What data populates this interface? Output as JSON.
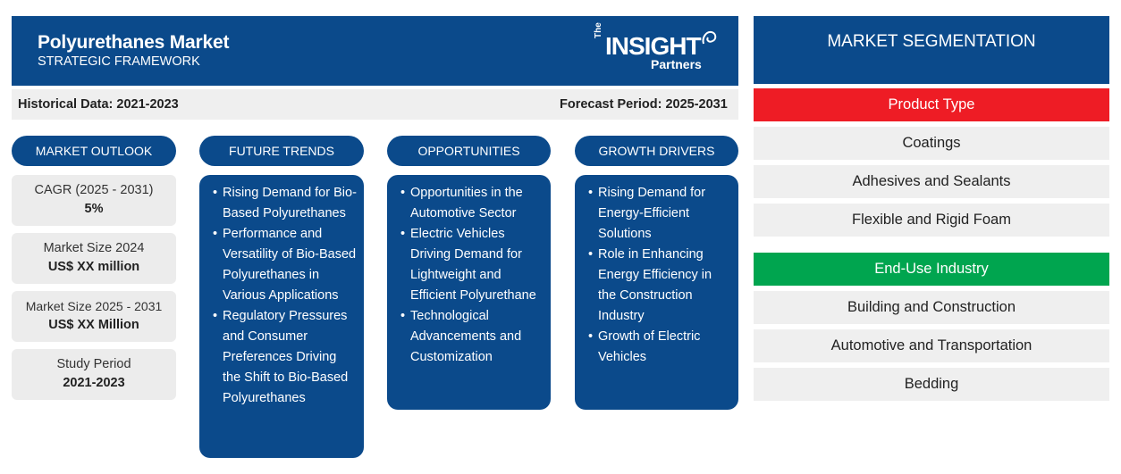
{
  "header": {
    "title": "Polyurethanes Market",
    "subtitle": "STRATEGIC FRAMEWORK",
    "logo": {
      "the": "The",
      "insight": "INSIGHT",
      "partners": "Partners"
    }
  },
  "info_bar": {
    "historical": "Historical Data: 2021-2023",
    "forecast": "Forecast Period: 2025-2031"
  },
  "columns": {
    "market_outlook": {
      "header": "MARKET OUTLOOK",
      "stats": [
        {
          "label": "CAGR (2025 - 2031)",
          "value": "5%"
        },
        {
          "label": "Market Size 2024",
          "value": "US$ XX million"
        },
        {
          "label": "Market Size 2025 - 2031",
          "value": "US$ XX Million"
        },
        {
          "label": "Study Period",
          "value": "2021-2023"
        }
      ]
    },
    "future_trends": {
      "header": "FUTURE TRENDS",
      "items": [
        "Rising Demand for Bio-Based Polyurethanes",
        "Performance and Versatility of Bio-Based Polyurethanes in Various Applications",
        "Regulatory Pressures and Consumer Preferences Driving the Shift to Bio-Based Polyurethanes"
      ]
    },
    "opportunities": {
      "header": "OPPORTUNITIES",
      "items": [
        "Opportunities in the Automotive Sector",
        "Electric Vehicles Driving Demand for Lightweight and Efficient Polyurethane",
        "Technological Advancements and Customization"
      ]
    },
    "growth_drivers": {
      "header": "GROWTH DRIVERS",
      "items": [
        "Rising Demand for Energy-Efficient Solutions",
        "Role in Enhancing Energy Efficiency in the Construction Industry",
        "Growth of Electric Vehicles"
      ]
    }
  },
  "segmentation": {
    "header": "MARKET SEGMENTATION",
    "groups": [
      {
        "name": "Product Type",
        "color": "#ee1c25",
        "items": [
          "Coatings",
          "Adhesives and Sealants",
          "Flexible and Rigid Foam"
        ]
      },
      {
        "name": "End-Use Industry",
        "color": "#00a54f",
        "items": [
          "Building and Construction",
          "Automotive and Transportation",
          "Bedding"
        ]
      }
    ]
  },
  "colors": {
    "primary_blue": "#0b4a8b",
    "light_gray": "#efefef"
  }
}
